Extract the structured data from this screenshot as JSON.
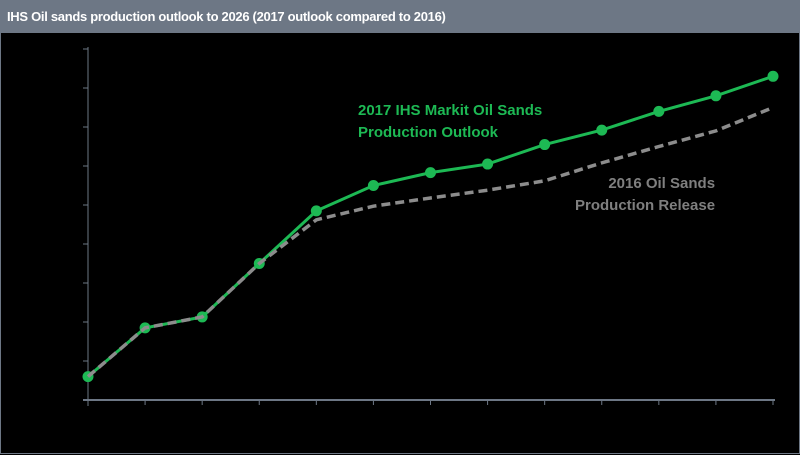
{
  "header": {
    "title": "IHS Oil sands production outlook to 2026 (2017 outlook compared to 2016)"
  },
  "colors": {
    "series_2017": "#1db954",
    "series_2016": "#8c8c8c",
    "axis": "#6d7785",
    "title_bg": "#6d7785",
    "background": "#000000"
  },
  "chart_data": {
    "type": "line",
    "title": "IHS Oil sands production outlook to 2026 (2017 outlook compared to 2016)",
    "xlabel": "",
    "ylabel": "",
    "x_tick_count": 13,
    "y_tick_count": 10,
    "tick_labels_shown": false,
    "ylim": [
      0,
      9
    ],
    "grid": false,
    "x": [
      0,
      1,
      2,
      3,
      4,
      5,
      6,
      7,
      8,
      9,
      10,
      11,
      12
    ],
    "series": [
      {
        "name": "2017 IHS Markit Oil Sands Production Outlook",
        "style": "solid-with-markers",
        "values": [
          0.6,
          1.85,
          2.13,
          3.5,
          4.85,
          5.5,
          5.83,
          6.05,
          6.55,
          6.92,
          7.4,
          7.8,
          8.3
        ]
      },
      {
        "name": "2016 Oil Sands Production Release",
        "style": "dashed",
        "values": [
          0.6,
          1.85,
          2.13,
          3.5,
          4.62,
          4.97,
          5.18,
          5.38,
          5.62,
          6.08,
          6.5,
          6.9,
          7.5
        ]
      }
    ],
    "annotations": [
      {
        "text": "2017 IHS Markit Oil Sands Production Outlook",
        "lines": [
          "2017 IHS Markit Oil Sands",
          "Production Outlook"
        ]
      },
      {
        "text": "2016 Oil Sands Production Release",
        "lines": [
          "2016 Oil Sands",
          "Production Release"
        ]
      }
    ]
  },
  "labels": {
    "green_line1": "2017 IHS Markit Oil Sands",
    "green_line2": "Production Outlook",
    "gray_line1": "2016 Oil Sands",
    "gray_line2": "Production Release"
  }
}
